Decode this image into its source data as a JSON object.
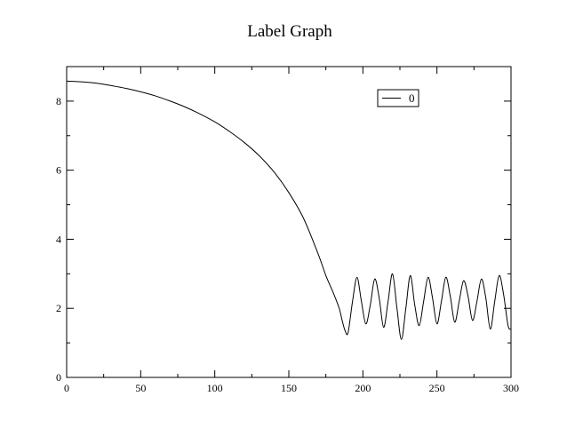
{
  "chart_data": {
    "type": "line",
    "title": "Label Graph",
    "xlabel": "",
    "ylabel": "",
    "xlim": [
      0,
      300
    ],
    "ylim": [
      0,
      9
    ],
    "x_ticks": [
      0,
      50,
      100,
      150,
      200,
      250,
      300
    ],
    "y_ticks": [
      0,
      2,
      4,
      6,
      8
    ],
    "grid": false,
    "legend_position": "top-right",
    "series": [
      {
        "name": "0",
        "color": "#000000",
        "x": [
          0,
          10,
          20,
          30,
          40,
          50,
          60,
          70,
          80,
          90,
          100,
          110,
          120,
          130,
          140,
          150,
          160,
          170,
          175,
          180,
          184,
          186,
          188,
          190,
          193,
          196,
          199,
          202,
          205,
          208,
          211,
          214,
          217,
          220,
          223,
          226,
          229,
          232,
          235,
          238,
          241,
          244,
          247,
          250,
          253,
          256,
          259,
          262,
          265,
          268,
          271,
          274,
          277,
          280,
          283,
          286,
          289,
          292,
          295,
          298,
          300
        ],
        "y": [
          8.58,
          8.56,
          8.52,
          8.45,
          8.37,
          8.27,
          8.15,
          8.0,
          7.83,
          7.63,
          7.4,
          7.12,
          6.8,
          6.42,
          5.95,
          5.35,
          4.6,
          3.55,
          2.95,
          2.45,
          2.0,
          1.65,
          1.35,
          1.3,
          2.2,
          2.9,
          2.2,
          1.55,
          2.1,
          2.85,
          2.3,
          1.45,
          2.2,
          3.0,
          2.0,
          1.1,
          2.0,
          2.95,
          2.1,
          1.5,
          2.2,
          2.9,
          2.3,
          1.55,
          2.2,
          2.9,
          2.35,
          1.6,
          2.2,
          2.8,
          2.35,
          1.65,
          2.2,
          2.85,
          2.3,
          1.4,
          2.2,
          2.95,
          2.4,
          1.5,
          1.4
        ]
      }
    ]
  }
}
